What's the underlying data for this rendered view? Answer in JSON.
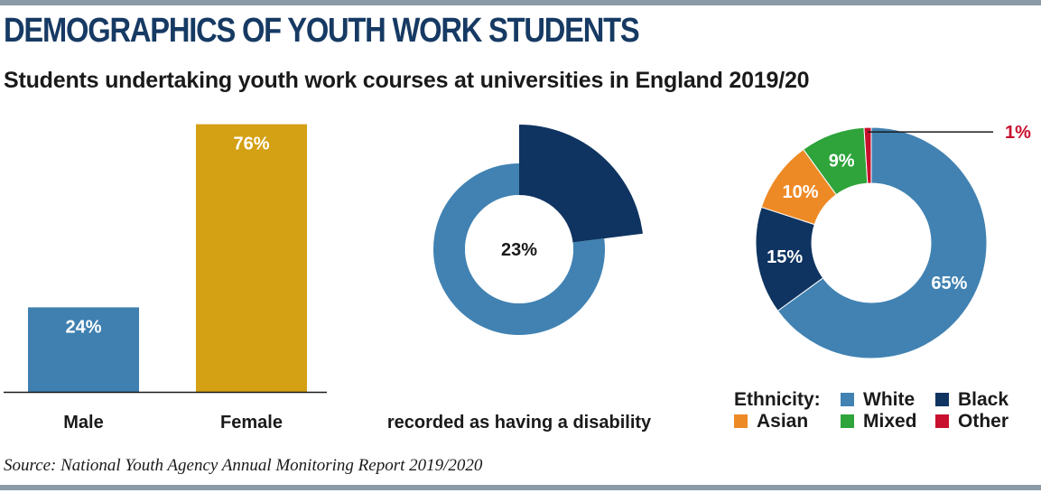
{
  "header": {
    "title": "DEMOGRAPHICS OF YOUTH WORK STUDENTS",
    "subtitle": "Students undertaking youth work courses at universities in England 2019/20"
  },
  "source": "Source: National Youth Agency Annual Monitoring Report 2019/2020",
  "colors": {
    "accent_rule": "#8a9aa6",
    "title": "#163a63",
    "male": "#3f80b0",
    "female": "#d4a014",
    "white": "#4182b2",
    "black": "#0f3461",
    "asian": "#ee8a26",
    "mixed": "#2ea43a",
    "other": "#c8102e"
  },
  "chart_data": [
    {
      "type": "bar",
      "categories": [
        "Male",
        "Female"
      ],
      "values": [
        24,
        76
      ],
      "value_labels": [
        "24%",
        "76%"
      ],
      "ylim": [
        0,
        100
      ]
    },
    {
      "type": "pie",
      "variant": "donut",
      "highlight_value": 23,
      "center_label": "23%",
      "caption": "recorded as having a disability"
    },
    {
      "type": "pie",
      "variant": "donut",
      "legend_title": "Ethnicity:",
      "legend_position": "bottom",
      "slices": [
        {
          "name": "White",
          "value": 65,
          "label": "65%"
        },
        {
          "name": "Black",
          "value": 15,
          "label": "15%"
        },
        {
          "name": "Asian",
          "value": 10,
          "label": "10%"
        },
        {
          "name": "Mixed",
          "value": 9,
          "label": "9%"
        },
        {
          "name": "Other",
          "value": 1,
          "label": "1%"
        }
      ],
      "legend_order": [
        "White",
        "Black",
        "Asian",
        "Mixed",
        "Other"
      ]
    }
  ]
}
